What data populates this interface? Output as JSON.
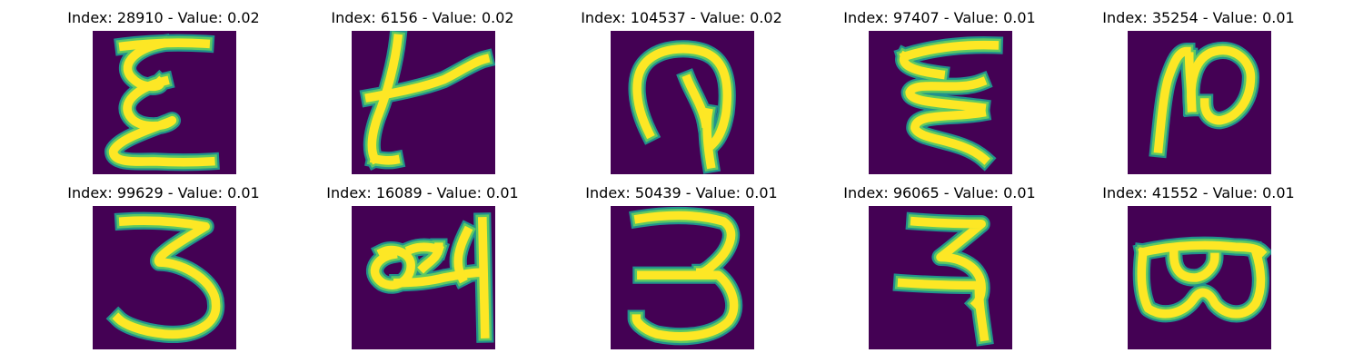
{
  "colors": {
    "background": "#440154",
    "stroke_edge": "#21918c",
    "stroke_mid": "#5ec962",
    "stroke_core": "#fde725"
  },
  "images": [
    {
      "index": "28910",
      "value": "0.02",
      "title": "Index: 28910 - Value: 0.02",
      "glyph": "handwritten-e-like"
    },
    {
      "index": "6156",
      "value": "0.02",
      "title": "Index: 6156 - Value: 0.02",
      "glyph": "handwritten-k-like"
    },
    {
      "index": "104537",
      "value": "0.02",
      "title": "Index: 104537 - Value: 0.02",
      "glyph": "handwritten-loop-hook"
    },
    {
      "index": "97407",
      "value": "0.01",
      "title": "Index: 97407 - Value: 0.01",
      "glyph": "handwritten-zigzag"
    },
    {
      "index": "35254",
      "value": "0.01",
      "title": "Index: 35254 - Value: 0.01",
      "glyph": "handwritten-n-loop"
    },
    {
      "index": "99629",
      "value": "0.01",
      "title": "Index: 99629 - Value: 0.01",
      "glyph": "handwritten-three"
    },
    {
      "index": "16089",
      "value": "0.01",
      "title": "Index: 16089 - Value: 0.01",
      "glyph": "handwritten-ligature"
    },
    {
      "index": "50439",
      "value": "0.01",
      "title": "Index: 50439 - Value: 0.01",
      "glyph": "handwritten-three-wide"
    },
    {
      "index": "96065",
      "value": "0.01",
      "title": "Index: 96065 - Value: 0.01",
      "glyph": "handwritten-ra-like"
    },
    {
      "index": "41552",
      "value": "0.01",
      "title": "Index: 41552 - Value: 0.01",
      "glyph": "handwritten-double-loop"
    }
  ]
}
